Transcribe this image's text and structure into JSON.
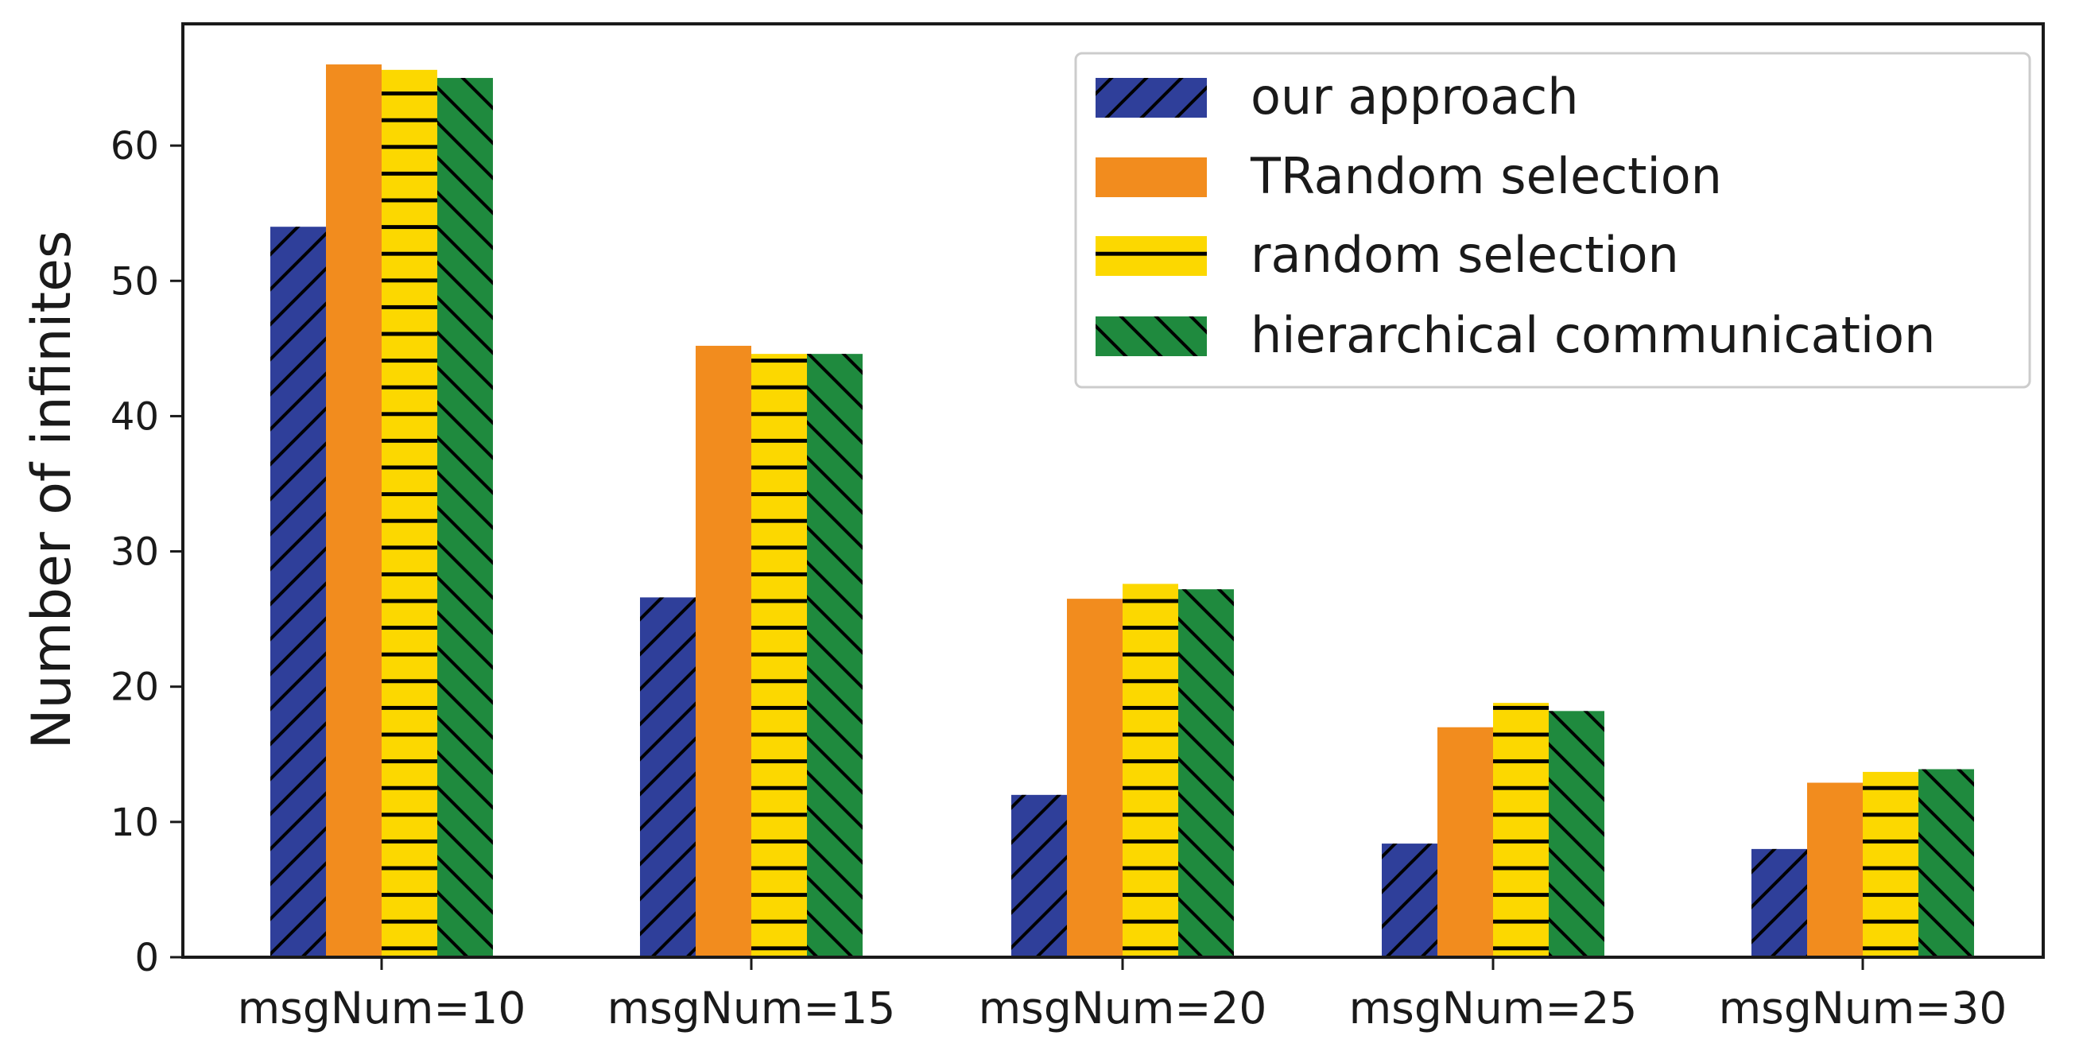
{
  "chart_data": {
    "type": "bar",
    "title": "",
    "xlabel": "",
    "ylabel": "Number of infinites",
    "ylim": [
      0,
      69
    ],
    "yticks": [
      0,
      10,
      20,
      30,
      40,
      50,
      60
    ],
    "grid": false,
    "legend_position": "top-right",
    "categories": [
      "msgNum=10",
      "msgNum=15",
      "msgNum=20",
      "msgNum=25",
      "msgNum=30"
    ],
    "series": [
      {
        "name": "our approach",
        "color": "#2f3f9a",
        "hatch": "diagonal-forward",
        "values": [
          54,
          26.6,
          12,
          8.4,
          8
        ]
      },
      {
        "name": "TRandom selection",
        "color": "#f28c1e",
        "hatch": "none",
        "values": [
          66,
          45.2,
          26.5,
          17,
          12.9
        ]
      },
      {
        "name": "random selection",
        "color": "#fcd800",
        "hatch": "horizontal",
        "values": [
          65.6,
          44.6,
          27.6,
          18.8,
          13.7
        ]
      },
      {
        "name": "hierarchical communication",
        "color": "#1f8a3e",
        "hatch": "diagonal-back",
        "values": [
          65,
          44.6,
          27.2,
          18.2,
          13.9
        ]
      }
    ]
  }
}
